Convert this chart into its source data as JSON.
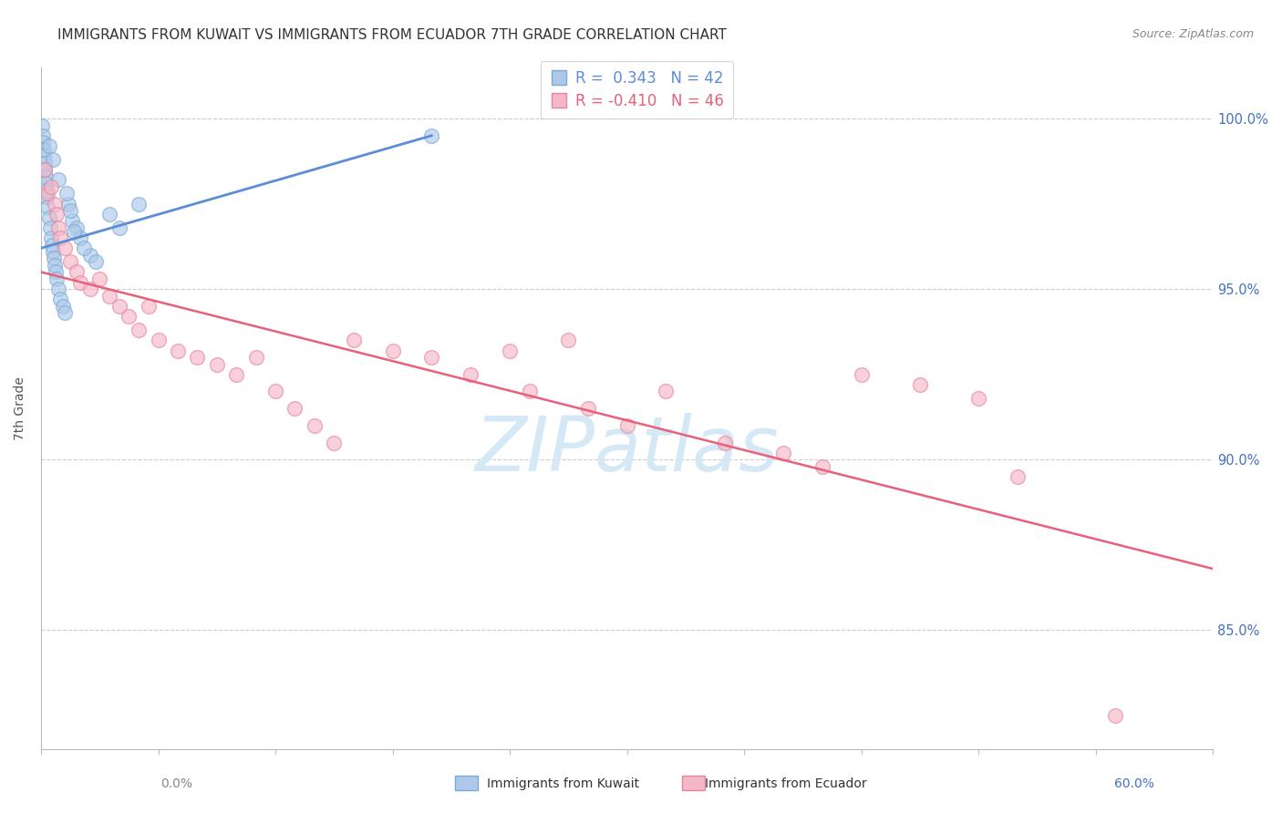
{
  "title": "IMMIGRANTS FROM KUWAIT VS IMMIGRANTS FROM ECUADOR 7TH GRADE CORRELATION CHART",
  "source": "Source: ZipAtlas.com",
  "ylabel": "7th Grade",
  "xlim": [
    0.0,
    60.0
  ],
  "ylim": [
    81.5,
    101.5
  ],
  "yticks": [
    85.0,
    90.0,
    95.0,
    100.0
  ],
  "legend_entries": [
    {
      "label": "Immigrants from Kuwait",
      "R": "0.343",
      "N": "42"
    },
    {
      "label": "Immigrants from Ecuador",
      "R": "-0.410",
      "N": "46"
    }
  ],
  "kuwait_scatter_x": [
    0.05,
    0.08,
    0.1,
    0.12,
    0.15,
    0.18,
    0.2,
    0.22,
    0.25,
    0.28,
    0.3,
    0.35,
    0.4,
    0.45,
    0.5,
    0.55,
    0.6,
    0.65,
    0.7,
    0.75,
    0.8,
    0.9,
    1.0,
    1.1,
    1.2,
    1.4,
    1.6,
    1.8,
    2.0,
    2.5,
    0.4,
    0.6,
    0.9,
    1.3,
    1.5,
    1.7,
    2.2,
    2.8,
    3.5,
    4.0,
    5.0,
    20.0
  ],
  "kuwait_scatter_y": [
    99.8,
    99.5,
    99.3,
    99.1,
    98.9,
    98.7,
    98.5,
    98.3,
    98.1,
    97.9,
    97.7,
    97.4,
    97.1,
    96.8,
    96.5,
    96.3,
    96.1,
    95.9,
    95.7,
    95.5,
    95.3,
    95.0,
    94.7,
    94.5,
    94.3,
    97.5,
    97.0,
    96.8,
    96.5,
    96.0,
    99.2,
    98.8,
    98.2,
    97.8,
    97.3,
    96.7,
    96.2,
    95.8,
    97.2,
    96.8,
    97.5,
    99.5
  ],
  "ecuador_scatter_x": [
    0.2,
    0.35,
    0.5,
    0.7,
    0.8,
    0.9,
    1.0,
    1.2,
    1.5,
    1.8,
    2.0,
    2.5,
    3.0,
    3.5,
    4.0,
    4.5,
    5.0,
    5.5,
    6.0,
    7.0,
    8.0,
    9.0,
    10.0,
    11.0,
    12.0,
    13.0,
    14.0,
    15.0,
    16.0,
    18.0,
    20.0,
    22.0,
    24.0,
    25.0,
    27.0,
    28.0,
    30.0,
    32.0,
    35.0,
    38.0,
    40.0,
    42.0,
    45.0,
    48.0,
    50.0,
    55.0
  ],
  "ecuador_scatter_y": [
    98.5,
    97.8,
    98.0,
    97.5,
    97.2,
    96.8,
    96.5,
    96.2,
    95.8,
    95.5,
    95.2,
    95.0,
    95.3,
    94.8,
    94.5,
    94.2,
    93.8,
    94.5,
    93.5,
    93.2,
    93.0,
    92.8,
    92.5,
    93.0,
    92.0,
    91.5,
    91.0,
    90.5,
    93.5,
    93.2,
    93.0,
    92.5,
    93.2,
    92.0,
    93.5,
    91.5,
    91.0,
    92.0,
    90.5,
    90.2,
    89.8,
    92.5,
    92.2,
    91.8,
    89.5,
    82.5
  ],
  "kuwait_line_x": [
    0.0,
    20.0
  ],
  "kuwait_line_y": [
    96.2,
    99.5
  ],
  "ecuador_line_x": [
    0.0,
    60.0
  ],
  "ecuador_line_y": [
    95.5,
    86.8
  ],
  "kuwait_color": "#5b8dd9",
  "ecuador_color": "#e8607a",
  "kuwait_scatter_fill": "#adc8e8",
  "ecuador_scatter_fill": "#f4b8c8",
  "kuwait_scatter_edge": "#7baad4",
  "ecuador_scatter_edge": "#e8849a",
  "watermark_color": "#d4e8f5",
  "background_color": "#ffffff",
  "grid_color": "#cccccc",
  "axis_color": "#bbbbbb",
  "title_color": "#333333",
  "source_color": "#888888",
  "right_label_color": "#4472c4",
  "tick_color": "#888888"
}
